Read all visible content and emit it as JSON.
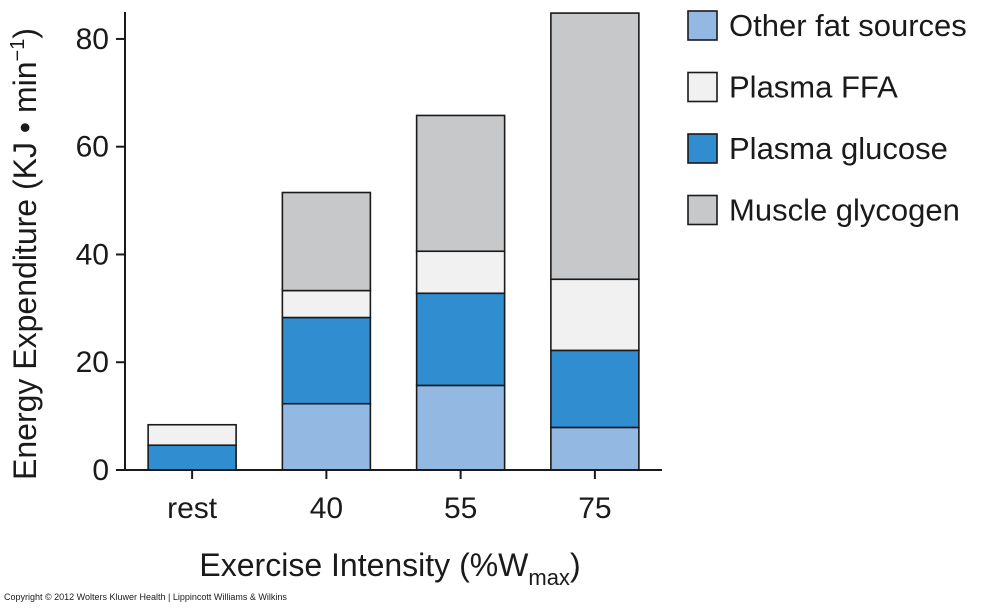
{
  "chart_data": {
    "type": "bar",
    "stacked": true,
    "categories": [
      "rest",
      "40",
      "55",
      "75"
    ],
    "series": [
      {
        "name": "Other fat sources",
        "color": "#93b9e3",
        "values": [
          0,
          12.3,
          15.7,
          7.9
        ]
      },
      {
        "name": "Plasma glucose",
        "color": "#2f8dd0",
        "values": [
          4.6,
          16.0,
          17.1,
          14.3
        ]
      },
      {
        "name": "Plasma FFA",
        "color": "#f1f1f1",
        "values": [
          3.8,
          5.0,
          7.8,
          13.2
        ]
      },
      {
        "name": "Muscle glycogen",
        "color": "#c7c8ca",
        "values": [
          0,
          18.2,
          25.2,
          49.4
        ]
      }
    ],
    "legend_order": [
      "Other fat sources",
      "Plasma FFA",
      "Plasma glucose",
      "Muscle glycogen"
    ],
    "legend_position": "top-right",
    "ylim": [
      0,
      85
    ],
    "yticks": [
      0,
      20,
      40,
      60,
      80
    ],
    "ylabel": "Energy Expenditure (KJ • min",
    "ylabel_sup": "−1",
    "ylabel_close": ")",
    "xlabel": "Exercise Intensity (%W",
    "xlabel_sub": "max",
    "xlabel_close": ")",
    "grid": false
  },
  "footer": {
    "copyright": "Copyright © 2012 Wolters Kluwer Health | Lippincott Williams & Wilkins"
  }
}
